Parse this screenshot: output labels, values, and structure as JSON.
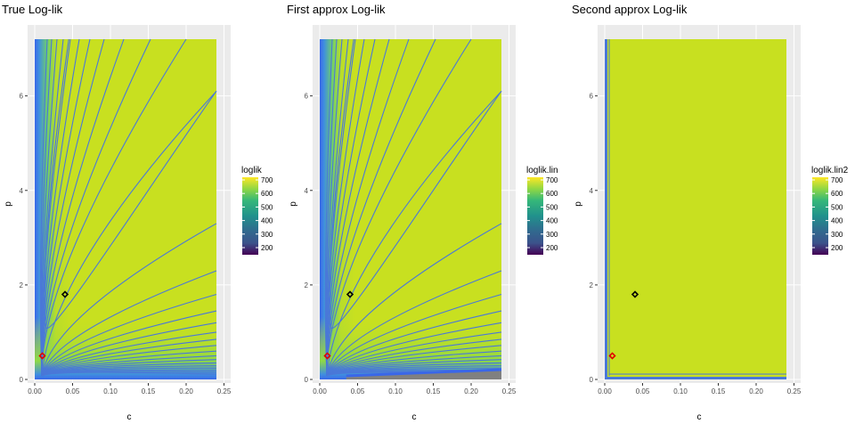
{
  "chart_data": [
    {
      "type": "heatmap",
      "title": "True Log-lik",
      "xlabel": "c",
      "ylabel": "p",
      "xlim": [
        0,
        0.24
      ],
      "ylim": [
        0,
        7.2
      ],
      "x_ticks": [
        "0.00",
        "0.05",
        "0.10",
        "0.15",
        "0.20",
        "0.25"
      ],
      "y_ticks": [
        "0",
        "2",
        "4",
        "6"
      ],
      "legend": {
        "title": "loglik",
        "ticks": [
          "700",
          "600",
          "500",
          "400",
          "300",
          "200"
        ],
        "position": "right"
      },
      "points": [
        {
          "series": "black",
          "c": 0.04,
          "p": 1.8
        },
        {
          "series": "red",
          "c": 0.01,
          "p": 0.5
        }
      ],
      "contours": "many"
    },
    {
      "type": "heatmap",
      "title": "First approx Log-lik",
      "xlabel": "c",
      "ylabel": "p",
      "xlim": [
        0,
        0.24
      ],
      "ylim": [
        0,
        7.2
      ],
      "x_ticks": [
        "0.00",
        "0.05",
        "0.10",
        "0.15",
        "0.20",
        "0.25"
      ],
      "y_ticks": [
        "0",
        "2",
        "4",
        "6"
      ],
      "legend": {
        "title": "loglik.lin",
        "ticks": [
          "700",
          "600",
          "500",
          "400",
          "300",
          "200"
        ],
        "position": "right"
      },
      "points": [
        {
          "series": "black",
          "c": 0.04,
          "p": 1.8
        },
        {
          "series": "red",
          "c": 0.01,
          "p": 0.5
        }
      ],
      "contours": "many"
    },
    {
      "type": "heatmap",
      "title": "Second approx Log-lik",
      "xlabel": "c",
      "ylabel": "p",
      "xlim": [
        0,
        0.24
      ],
      "ylim": [
        0,
        7.2
      ],
      "x_ticks": [
        "0.00",
        "0.05",
        "0.10",
        "0.15",
        "0.20",
        "0.25"
      ],
      "y_ticks": [
        "0",
        "2",
        "4",
        "6"
      ],
      "legend": {
        "title": "loglik.lin2",
        "ticks": [
          "700",
          "600",
          "500",
          "400",
          "300",
          "200"
        ],
        "position": "right"
      },
      "points": [
        {
          "series": "black",
          "c": 0.04,
          "p": 1.8
        },
        {
          "series": "red",
          "c": 0.01,
          "p": 0.5
        }
      ],
      "contours": "flat"
    }
  ],
  "colors": {
    "panel_bg": "#ebebeb",
    "grid_major": "#ffffff",
    "field_high": "#c8e020",
    "field_mid": "#9bd93c",
    "field_low": "#3a67e8",
    "contour": "#4a78d8",
    "masked": "#808080",
    "point_black": "#000000",
    "point_red": "#e00000"
  }
}
